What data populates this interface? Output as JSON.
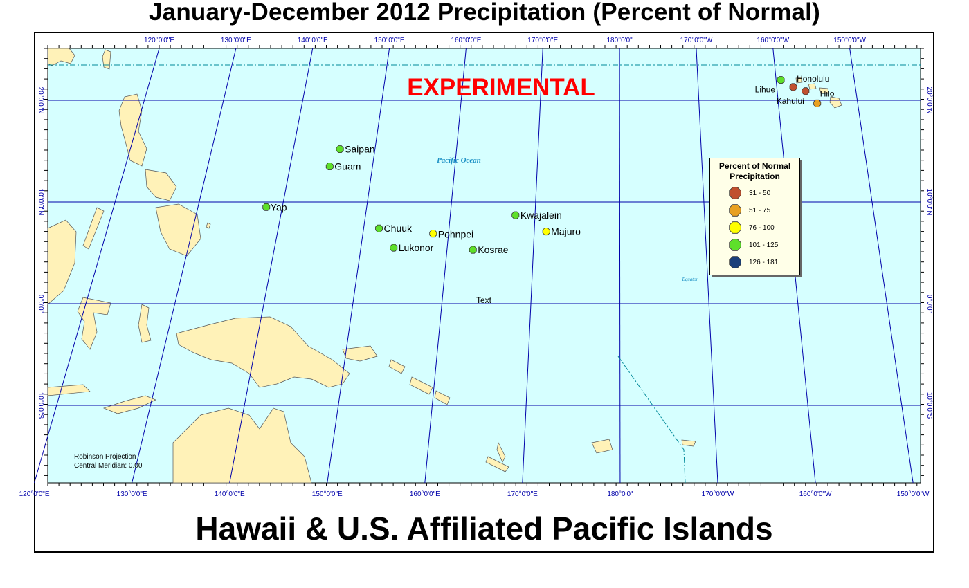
{
  "title": "January-December 2012 Precipitation (Percent of Normal)",
  "subtitle": "Hawaii & U.S. Affiliated Pacific Islands",
  "watermark": "EXPERIMENTAL",
  "ocean_label": "Pacific Ocean",
  "equator_label": "Equator",
  "stray_label": "Text",
  "projection": {
    "line1": "Robinson Projection",
    "line2": "Central Meridian: 0.00"
  },
  "colors": {
    "ocean": "#d6ffff",
    "land": "#fff2b8",
    "grid": "#0000aa",
    "watermark": "#ff0000"
  },
  "longitude_labels": [
    "120°0'0\"E",
    "130°0'0\"E",
    "140°0'0\"E",
    "150°0'0\"E",
    "160°0'0\"E",
    "170°0'0\"E",
    "180°0'0\"",
    "170°0'0\"W",
    "160°0'0\"W",
    "150°0'0\"W"
  ],
  "latitude_labels": [
    "20°0'0\"N",
    "10°0'0\"N",
    "0°0'0\"",
    "10°0'0\"S"
  ],
  "legend": {
    "title_line1": "Percent of Normal",
    "title_line2": "Precipitation",
    "items": [
      {
        "label": "31 - 50",
        "color": "#c0502f"
      },
      {
        "label": "51 - 75",
        "color": "#e8a020"
      },
      {
        "label": "76 - 100",
        "color": "#ffff00"
      },
      {
        "label": "101 - 125",
        "color": "#5ee02a"
      },
      {
        "label": "126 - 181",
        "color": "#1a3f7a"
      }
    ]
  },
  "stations": [
    {
      "name": "Saipan",
      "lon": 145.7,
      "lat": 15.2,
      "pct_class": "101 - 125"
    },
    {
      "name": "Guam",
      "lon": 144.8,
      "lat": 13.5,
      "pct_class": "101 - 125"
    },
    {
      "name": "Yap",
      "lon": 138.1,
      "lat": 9.5,
      "pct_class": "101 - 125"
    },
    {
      "name": "Chuuk",
      "lon": 151.8,
      "lat": 7.4,
      "pct_class": "101 - 125"
    },
    {
      "name": "Pohnpei",
      "lon": 158.2,
      "lat": 6.9,
      "pct_class": "76 - 100"
    },
    {
      "name": "Lukonor",
      "lon": 153.8,
      "lat": 5.5,
      "pct_class": "101 - 125"
    },
    {
      "name": "Kosrae",
      "lon": 163.0,
      "lat": 5.3,
      "pct_class": "101 - 125"
    },
    {
      "name": "Kwajalein",
      "lon": 167.7,
      "lat": 8.7,
      "pct_class": "101 - 125"
    },
    {
      "name": "Majuro",
      "lon": 171.4,
      "lat": 7.1,
      "pct_class": "76 - 100"
    },
    {
      "name": "Lihue",
      "lon": -159.4,
      "lat": 22.0,
      "pct_class": "101 - 125"
    },
    {
      "name": "Honolulu",
      "lon": -157.9,
      "lat": 21.3,
      "pct_class": "31 - 50"
    },
    {
      "name": "Kahului",
      "lon": -156.4,
      "lat": 20.9,
      "pct_class": "31 - 50"
    },
    {
      "name": "Hilo",
      "lon": -155.1,
      "lat": 19.7,
      "pct_class": "51 - 75"
    }
  ]
}
